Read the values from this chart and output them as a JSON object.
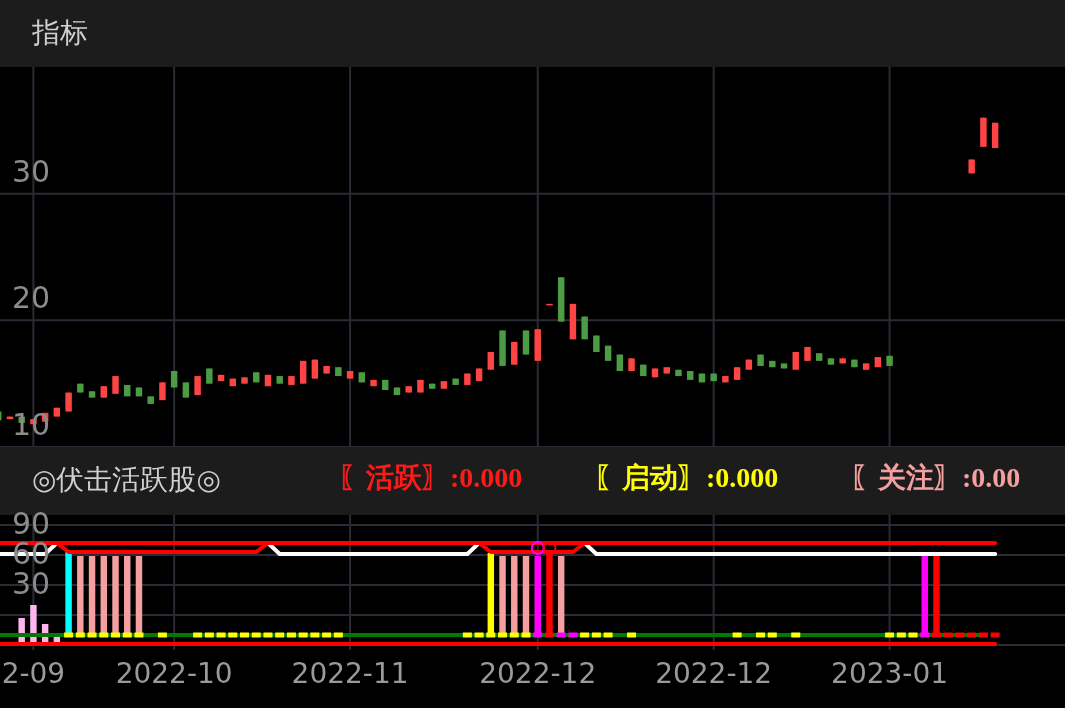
{
  "chart_data": [
    {
      "type": "candlestick",
      "title": "指标",
      "ylim": [
        10,
        40
      ],
      "yticks": [
        10,
        20,
        30
      ],
      "grid": true,
      "tick_labels": "y",
      "categories": [
        null,
        null,
        null,
        null,
        null,
        null,
        null,
        null,
        null,
        null,
        null,
        null,
        null,
        null,
        null,
        null,
        null,
        null,
        null,
        null,
        null,
        null,
        null,
        null,
        null,
        null,
        null,
        null,
        null,
        null,
        null,
        null,
        null,
        null,
        null,
        null,
        null,
        null,
        null,
        null,
        null,
        null,
        null,
        null,
        null,
        null,
        null,
        null,
        null,
        null,
        null,
        null,
        null,
        null,
        null,
        null,
        null,
        null,
        null,
        null,
        null,
        null,
        null,
        null,
        null,
        null,
        null,
        null,
        null,
        null,
        null,
        null,
        null,
        null,
        null,
        null,
        null,
        null,
        null,
        null,
        null,
        null,
        null,
        null,
        null,
        null,
        null,
        null,
        null,
        null,
        null
      ],
      "ohlc": [
        [
          12.8,
          12.8,
          12.1,
          12.1
        ],
        [
          12.2,
          12.4,
          12.2,
          12.4
        ],
        [
          12.4,
          12.4,
          11.9,
          11.9
        ],
        [
          11.8,
          12.2,
          11.8,
          12.2
        ],
        [
          12.0,
          12.7,
          12.0,
          12.7
        ],
        [
          12.4,
          13.1,
          12.4,
          13.1
        ],
        [
          12.8,
          14.3,
          12.8,
          14.3
        ],
        [
          15.0,
          15.0,
          14.3,
          14.3
        ],
        [
          14.4,
          14.4,
          13.9,
          13.9
        ],
        [
          13.9,
          14.8,
          13.9,
          14.8
        ],
        [
          14.2,
          15.6,
          14.2,
          15.6
        ],
        [
          14.9,
          14.9,
          14.0,
          14.0
        ],
        [
          14.7,
          14.7,
          14.0,
          14.0
        ],
        [
          14.0,
          14.0,
          13.4,
          13.4
        ],
        [
          13.7,
          15.1,
          13.7,
          15.1
        ],
        [
          16.0,
          16.0,
          14.7,
          14.7
        ],
        [
          15.1,
          15.1,
          13.9,
          13.9
        ],
        [
          14.1,
          15.6,
          14.1,
          15.6
        ],
        [
          16.2,
          16.2,
          15.0,
          15.0
        ],
        [
          15.2,
          15.7,
          15.2,
          15.7
        ],
        [
          14.8,
          15.4,
          14.8,
          15.4
        ],
        [
          15.0,
          15.5,
          15.0,
          15.5
        ],
        [
          15.9,
          15.9,
          15.1,
          15.1
        ],
        [
          14.8,
          15.7,
          14.8,
          15.7
        ],
        [
          15.6,
          15.6,
          15.0,
          15.0
        ],
        [
          14.9,
          15.6,
          14.9,
          15.6
        ],
        [
          15.0,
          16.8,
          15.0,
          16.8
        ],
        [
          15.4,
          16.9,
          15.4,
          16.9
        ],
        [
          15.8,
          16.4,
          15.8,
          16.4
        ],
        [
          16.3,
          16.3,
          15.6,
          15.6
        ],
        [
          15.4,
          16.0,
          15.4,
          16.0
        ],
        [
          15.9,
          15.9,
          15.1,
          15.1
        ],
        [
          14.8,
          15.3,
          14.8,
          15.3
        ],
        [
          15.3,
          15.3,
          14.5,
          14.5
        ],
        [
          14.7,
          14.7,
          14.1,
          14.1
        ],
        [
          14.3,
          14.8,
          14.3,
          14.8
        ],
        [
          14.3,
          15.3,
          14.3,
          15.3
        ],
        [
          15.0,
          15.0,
          14.6,
          14.6
        ],
        [
          14.6,
          15.2,
          14.6,
          15.2
        ],
        [
          15.4,
          15.4,
          14.9,
          14.9
        ],
        [
          14.9,
          15.8,
          14.9,
          15.8
        ],
        [
          15.2,
          16.2,
          15.2,
          16.2
        ],
        [
          16.1,
          17.5,
          16.1,
          17.5
        ],
        [
          19.2,
          19.2,
          16.4,
          16.4
        ],
        [
          16.5,
          18.3,
          16.5,
          18.3
        ],
        [
          19.2,
          19.2,
          17.3,
          17.3
        ],
        [
          16.8,
          19.3,
          16.8,
          19.3
        ],
        [
          21.3,
          21.3,
          21.3,
          21.3
        ],
        [
          23.4,
          23.4,
          19.9,
          19.9
        ],
        [
          18.5,
          21.3,
          18.5,
          21.3
        ],
        [
          20.3,
          20.3,
          18.5,
          18.5
        ],
        [
          18.8,
          18.8,
          17.5,
          17.5
        ],
        [
          18.0,
          18.0,
          16.8,
          16.8
        ],
        [
          17.3,
          17.3,
          16.0,
          16.0
        ],
        [
          16.0,
          17.0,
          16.0,
          17.0
        ],
        [
          16.5,
          16.5,
          15.6,
          15.6
        ],
        [
          15.5,
          16.2,
          15.5,
          16.2
        ],
        [
          15.8,
          16.3,
          15.8,
          16.3
        ],
        [
          16.1,
          16.1,
          15.6,
          15.6
        ],
        [
          16.0,
          16.0,
          15.3,
          15.3
        ],
        [
          15.8,
          15.8,
          15.1,
          15.1
        ],
        [
          15.8,
          15.8,
          15.2,
          15.2
        ],
        [
          15.1,
          15.6,
          15.1,
          15.6
        ],
        [
          15.3,
          16.3,
          15.3,
          16.3
        ],
        [
          16.1,
          16.9,
          16.1,
          16.9
        ],
        [
          17.3,
          17.3,
          16.4,
          16.4
        ],
        [
          16.8,
          16.8,
          16.3,
          16.3
        ],
        [
          16.6,
          16.6,
          16.2,
          16.2
        ],
        [
          16.1,
          17.5,
          16.1,
          17.5
        ],
        [
          16.8,
          17.9,
          16.8,
          17.9
        ],
        [
          17.4,
          17.4,
          16.8,
          16.8
        ],
        [
          17.0,
          17.0,
          16.5,
          16.5
        ],
        [
          16.6,
          17.0,
          16.6,
          17.0
        ],
        [
          16.9,
          16.9,
          16.3,
          16.3
        ],
        [
          16.1,
          16.6,
          16.1,
          16.6
        ],
        [
          16.3,
          17.1,
          16.3,
          17.1
        ],
        [
          17.2,
          17.2,
          16.4,
          16.4
        ],
        null,
        null,
        null,
        null,
        null,
        null,
        [
          31.6,
          32.7,
          31.6,
          32.7
        ],
        [
          33.7,
          36.0,
          33.7,
          36.0
        ],
        [
          33.6,
          35.6,
          33.6,
          35.6
        ],
        null,
        null,
        null,
        null,
        null
      ],
      "colors": [
        "#4c9c44",
        "#ff4444",
        "#4c9c44",
        "#ff4444",
        "#ff4444",
        "#ff4444",
        "#ff4444",
        "#4c9c44",
        "#4c9c44",
        "#ff4444",
        "#ff4444",
        "#4c9c44",
        "#4c9c44",
        "#4c9c44",
        "#ff4444",
        "#4c9c44",
        "#4c9c44",
        "#ff4444",
        "#4c9c44",
        "#ff4444",
        "#ff4444",
        "#ff4444",
        "#4c9c44",
        "#ff4444",
        "#4c9c44",
        "#ff4444",
        "#ff4444",
        "#ff4444",
        "#ff4444",
        "#4c9c44",
        "#ff4444",
        "#4c9c44",
        "#ff4444",
        "#4c9c44",
        "#4c9c44",
        "#ff4444",
        "#ff4444",
        "#4c9c44",
        "#ff4444",
        "#4c9c44",
        "#ff4444",
        "#ff4444",
        "#ff4444",
        "#4c9c44",
        "#ff4444",
        "#4c9c44",
        "#ff4444",
        "#ff4444",
        "#4c9c44",
        "#ff4444",
        "#4c9c44",
        "#4c9c44",
        "#4c9c44",
        "#4c9c44",
        "#ff4444",
        "#4c9c44",
        "#ff4444",
        "#ff4444",
        "#4c9c44",
        "#4c9c44",
        "#4c9c44",
        "#4c9c44",
        "#ff4444",
        "#ff4444",
        "#ff4444",
        "#4c9c44",
        "#4c9c44",
        "#4c9c44",
        "#ff4444",
        "#ff4444",
        "#4c9c44",
        "#4c9c44",
        "#ff4444",
        "#4c9c44",
        "#ff4444",
        "#ff4444",
        "#4c9c44",
        null,
        null,
        null,
        null,
        null,
        null,
        "#ff4444",
        "#ff4444",
        "#ff4444",
        null,
        null,
        null,
        null,
        null
      ]
    },
    {
      "type": "bar",
      "title": "◎伏击活跃股◎",
      "annotations": [
        "〖活跃〗:0.000",
        "〖启动〗:0.000",
        "〖关注〗:0.00"
      ],
      "ylim": [
        -35,
        100
      ],
      "yticks": [
        {
          "value": -30,
          "label": null
        },
        {
          "value": 0,
          "label": null
        },
        30,
        60,
        90
      ],
      "grid": true,
      "categories": [
        null,
        null,
        null,
        "2-09",
        null,
        null,
        null,
        null,
        null,
        null,
        null,
        null,
        null,
        null,
        null,
        "2022-10",
        null,
        null,
        null,
        null,
        null,
        null,
        null,
        null,
        null,
        null,
        null,
        null,
        null,
        null,
        "2022-11",
        null,
        null,
        null,
        null,
        null,
        null,
        null,
        null,
        null,
        null,
        null,
        null,
        null,
        null,
        null,
        "2022-12",
        null,
        null,
        null,
        null,
        null,
        null,
        null,
        null,
        null,
        null,
        null,
        null,
        null,
        null,
        "2022-12",
        null,
        null,
        null,
        null,
        null,
        null,
        null,
        null,
        null,
        null,
        null,
        null,
        null,
        null,
        "2023-01",
        null,
        null,
        null,
        null,
        null,
        null,
        null,
        null,
        null,
        null,
        null,
        null,
        null,
        null
      ],
      "base": [
        null,
        null,
        -27,
        -27,
        -27,
        -27,
        -18,
        -18,
        -18,
        -18,
        -18,
        -18,
        -18,
        null,
        null,
        null,
        null,
        null,
        null,
        null,
        null,
        null,
        null,
        null,
        null,
        null,
        null,
        null,
        null,
        null,
        null,
        null,
        null,
        null,
        null,
        null,
        null,
        null,
        null,
        null,
        null,
        null,
        -18,
        -18,
        -18,
        -18,
        -18,
        -18,
        -18,
        null,
        null,
        null,
        null,
        null,
        null,
        null,
        null,
        null,
        null,
        null,
        null,
        null,
        null,
        null,
        null,
        null,
        null,
        null,
        null,
        null,
        null,
        null,
        null,
        null,
        null,
        null,
        null,
        null,
        null,
        -18,
        -18,
        null,
        null,
        null,
        null,
        null,
        null,
        null,
        null,
        null,
        null
      ],
      "values": [
        null,
        null,
        24,
        37,
        18,
        5,
        81,
        77,
        77,
        77,
        77,
        77,
        77,
        null,
        null,
        null,
        null,
        null,
        null,
        null,
        null,
        null,
        null,
        null,
        null,
        null,
        null,
        null,
        null,
        null,
        null,
        null,
        null,
        null,
        null,
        null,
        null,
        null,
        null,
        null,
        null,
        null,
        80,
        77,
        77,
        77,
        77,
        81,
        77,
        null,
        null,
        null,
        null,
        null,
        null,
        null,
        null,
        null,
        null,
        null,
        null,
        null,
        null,
        null,
        null,
        null,
        null,
        null,
        null,
        null,
        null,
        null,
        null,
        null,
        null,
        null,
        null,
        null,
        null,
        77,
        77,
        null,
        null,
        null,
        null,
        null,
        null,
        null,
        null,
        null,
        null
      ],
      "colors": [
        null,
        null,
        "#ffb6f0",
        "#ffb6f0",
        "#ffb6f0",
        "#ffb6f0",
        "#00ffff",
        "#f4a0a0",
        "#f4a0a0",
        "#f4a0a0",
        "#f4a0a0",
        "#f4a0a0",
        "#f4a0a0",
        null,
        null,
        null,
        null,
        null,
        null,
        null,
        null,
        null,
        null,
        null,
        null,
        null,
        null,
        null,
        null,
        null,
        null,
        null,
        null,
        null,
        null,
        null,
        null,
        null,
        null,
        null,
        null,
        null,
        "#ffff00",
        "#f4a0a0",
        "#f4a0a0",
        "#f4a0a0",
        "#ff00ff",
        "#ff0000",
        "#f4a0a0",
        null,
        null,
        null,
        null,
        null,
        null,
        null,
        null,
        null,
        null,
        null,
        null,
        null,
        null,
        null,
        null,
        null,
        null,
        null,
        null,
        null,
        null,
        null,
        null,
        null,
        null,
        null,
        null,
        null,
        null,
        "#ff00ff",
        "#ff0000",
        null,
        null,
        null,
        null,
        null,
        null,
        null,
        null,
        null,
        null
      ],
      "series": [
        {
          "type": "line",
          "color": "#ffffff",
          "values": [
            61,
            61,
            61,
            61,
            61,
            72,
            null,
            null,
            null,
            null,
            null,
            null,
            null,
            null,
            null,
            null,
            null,
            null,
            null,
            null,
            null,
            null,
            null,
            72,
            61,
            61,
            61,
            61,
            61,
            61,
            61,
            61,
            61,
            61,
            61,
            61,
            61,
            61,
            61,
            61,
            61,
            72,
            null,
            null,
            null,
            null,
            null,
            null,
            null,
            null,
            72,
            61,
            61,
            61,
            61,
            61,
            61,
            61,
            61,
            61,
            61,
            61,
            61,
            61,
            61,
            61,
            61,
            61,
            61,
            61,
            61,
            61,
            61,
            61,
            61,
            61,
            61,
            61,
            61,
            61,
            61,
            61,
            61,
            61,
            61,
            61,
            null,
            null,
            null,
            null,
            null
          ]
        },
        {
          "type": "line",
          "color": "#ff0000",
          "values": [
            null,
            null,
            null,
            null,
            null,
            72,
            63,
            63,
            63,
            63,
            63,
            63,
            63,
            63,
            63,
            63,
            63,
            63,
            63,
            63,
            63,
            63,
            63,
            72,
            null,
            null,
            null,
            null,
            null,
            null,
            null,
            null,
            null,
            null,
            null,
            null,
            null,
            null,
            null,
            null,
            null,
            72,
            63,
            63,
            63,
            63,
            63,
            63,
            63,
            63,
            72,
            null,
            null,
            null,
            null,
            null,
            null,
            null,
            null,
            null,
            null,
            null,
            null,
            null,
            null,
            null,
            null,
            null,
            null,
            null,
            null,
            null,
            null,
            null,
            null,
            null,
            null,
            null,
            null,
            null,
            null,
            null,
            null,
            null,
            null,
            null,
            null,
            null,
            null,
            null,
            null
          ]
        },
        {
          "type": "line",
          "color": "#ff0000",
          "values": [
            72,
            72,
            72,
            72,
            72,
            72,
            72,
            72,
            72,
            72,
            72,
            72,
            72,
            72,
            72,
            72,
            72,
            72,
            72,
            72,
            72,
            72,
            72,
            72,
            72,
            72,
            72,
            72,
            72,
            72,
            72,
            72,
            72,
            72,
            72,
            72,
            72,
            72,
            72,
            72,
            72,
            72,
            72,
            72,
            72,
            72,
            72,
            72,
            72,
            72,
            72,
            72,
            72,
            72,
            72,
            72,
            72,
            72,
            72,
            72,
            72,
            72,
            72,
            72,
            72,
            72,
            72,
            72,
            72,
            72,
            72,
            72,
            72,
            72,
            72,
            72,
            72,
            72,
            72,
            72,
            72,
            72,
            72,
            72,
            72,
            72,
            null,
            null,
            null,
            null,
            null
          ]
        },
        {
          "type": "line",
          "color": "#007a00",
          "values": [
            -20,
            -20,
            -20,
            -20,
            -20,
            -20,
            -20,
            -20,
            -20,
            -20,
            -20,
            -20,
            -20,
            -20,
            -20,
            -20,
            -20,
            -20,
            -20,
            -20,
            -20,
            -20,
            -20,
            -20,
            -20,
            -20,
            -20,
            -20,
            -20,
            -20,
            -20,
            -20,
            -20,
            -20,
            -20,
            -20,
            -20,
            -20,
            -20,
            -20,
            -20,
            -20,
            -20,
            -20,
            -20,
            -20,
            -20,
            -20,
            -20,
            -20,
            -20,
            -20,
            -20,
            -20,
            -20,
            -20,
            -20,
            -20,
            -20,
            -20,
            -20,
            -20,
            -20,
            -20,
            -20,
            -20,
            -20,
            -20,
            -20,
            -20,
            -20,
            -20,
            -20,
            -20,
            -20,
            -20,
            -20,
            -20,
            -20,
            -20,
            -20,
            -20,
            -20,
            -20,
            -20,
            null,
            null,
            null,
            null,
            null,
            null
          ]
        },
        {
          "type": "line",
          "color": "#ff0000",
          "values": [
            -29,
            -29,
            -29,
            -29,
            -29,
            -29,
            -29,
            -29,
            -29,
            -29,
            -29,
            -29,
            -29,
            -29,
            -29,
            -29,
            -29,
            -29,
            -29,
            -29,
            -29,
            -29,
            -29,
            -29,
            -29,
            -29,
            -29,
            -29,
            -29,
            -29,
            -29,
            -29,
            -29,
            -29,
            -29,
            -29,
            -29,
            -29,
            -29,
            -29,
            -29,
            -29,
            -29,
            -29,
            -29,
            -29,
            -29,
            -29,
            -29,
            -29,
            -29,
            -29,
            -29,
            -29,
            -29,
            -29,
            -29,
            -29,
            -29,
            -29,
            -29,
            -29,
            -29,
            -29,
            -29,
            -29,
            -29,
            -29,
            -29,
            -29,
            -29,
            -29,
            -29,
            -29,
            -29,
            -29,
            -29,
            -29,
            -29,
            -29,
            -29,
            -29,
            -29,
            -29,
            -29,
            -29,
            null,
            null,
            null,
            null,
            null
          ]
        },
        {
          "type": "scatter",
          "marker": "square",
          "values": [
            null,
            null,
            null,
            null,
            null,
            null,
            -20,
            -20,
            -20,
            -20,
            -20,
            -20,
            -20,
            null,
            -20,
            null,
            null,
            -20,
            -20,
            -20,
            -20,
            -20,
            -20,
            -20,
            -20,
            -20,
            -20,
            -20,
            -20,
            -20,
            null,
            null,
            null,
            null,
            null,
            null,
            null,
            null,
            null,
            null,
            -20,
            -20,
            -20,
            -20,
            -20,
            -20,
            -20,
            -20,
            -20,
            -20,
            -20,
            -20,
            -20,
            null,
            -20,
            null,
            null,
            null,
            null,
            null,
            null,
            null,
            null,
            -20,
            null,
            -20,
            -20,
            null,
            -20,
            null,
            null,
            null,
            null,
            null,
            null,
            null,
            -20,
            -20,
            -20,
            -20,
            -20,
            -20,
            -20,
            -20,
            -20,
            -20,
            null,
            null,
            null,
            null,
            null
          ],
          "colors": [
            null,
            null,
            null,
            null,
            null,
            null,
            "#ffff00",
            "#ffff00",
            "#ffff00",
            "#ffff00",
            "#ffff00",
            "#ffff00",
            "#ffff00",
            null,
            "#ffff00",
            null,
            null,
            "#ffff00",
            "#ffff00",
            "#ffff00",
            "#ffff00",
            "#ffff00",
            "#ffff00",
            "#ffff00",
            "#ffff00",
            "#ffff00",
            "#ffff00",
            "#ffff00",
            "#ffff00",
            "#ffff00",
            null,
            null,
            null,
            null,
            null,
            null,
            null,
            null,
            null,
            null,
            "#ffff00",
            "#ffff00",
            "#ffff00",
            "#ffff00",
            "#ffff00",
            "#ffff00",
            "#ff00ff",
            "#ff0000",
            "#ff00ff",
            "#ff00ff",
            "#ffff00",
            "#ffff00",
            "#ffff00",
            null,
            "#ffff00",
            null,
            null,
            null,
            null,
            null,
            null,
            null,
            null,
            "#ffff00",
            null,
            "#ffff00",
            "#ffff00",
            null,
            "#ffff00",
            null,
            null,
            null,
            null,
            null,
            null,
            null,
            "#ffff00",
            "#ffff00",
            "#ffff00",
            "#ff00ff",
            "#ff0000",
            "#ff0000",
            "#ff0000",
            "#ff0000",
            "#ff0000",
            "#ff0000",
            null,
            null,
            null,
            null,
            null
          ]
        },
        {
          "type": "scatter",
          "marker": "circle",
          "values": [
            null,
            null,
            null,
            null,
            null,
            null,
            null,
            null,
            null,
            null,
            null,
            null,
            null,
            null,
            null,
            null,
            null,
            null,
            null,
            null,
            null,
            null,
            null,
            null,
            null,
            null,
            null,
            null,
            null,
            null,
            null,
            null,
            null,
            null,
            null,
            null,
            null,
            null,
            null,
            null,
            null,
            null,
            null,
            null,
            null,
            null,
            67,
            67,
            null,
            null,
            null,
            null,
            null,
            null,
            null,
            null,
            null,
            null,
            null,
            null,
            null,
            null,
            null,
            null,
            null,
            null,
            null,
            null,
            null,
            null,
            null,
            null,
            null,
            null,
            null,
            null,
            null,
            null,
            null,
            null,
            null,
            null,
            null,
            null,
            null,
            null,
            null,
            null,
            null,
            null,
            null
          ],
          "colors": [
            null,
            null,
            null,
            null,
            null,
            null,
            null,
            null,
            null,
            null,
            null,
            null,
            null,
            null,
            null,
            null,
            null,
            null,
            null,
            null,
            null,
            null,
            null,
            null,
            null,
            null,
            null,
            null,
            null,
            null,
            null,
            null,
            null,
            null,
            null,
            null,
            null,
            null,
            null,
            null,
            null,
            null,
            null,
            null,
            null,
            null,
            "#ff00ff",
            "#ff0000",
            null,
            null,
            null,
            null,
            null,
            null,
            null,
            null,
            null,
            null,
            null,
            null,
            null,
            null,
            null,
            null,
            null,
            null,
            null,
            null,
            null,
            null,
            null,
            null,
            null,
            null,
            null,
            null,
            null,
            null,
            null,
            null,
            null,
            null,
            null,
            null,
            null,
            null,
            null,
            null,
            null,
            null,
            null
          ]
        }
      ]
    }
  ]
}
